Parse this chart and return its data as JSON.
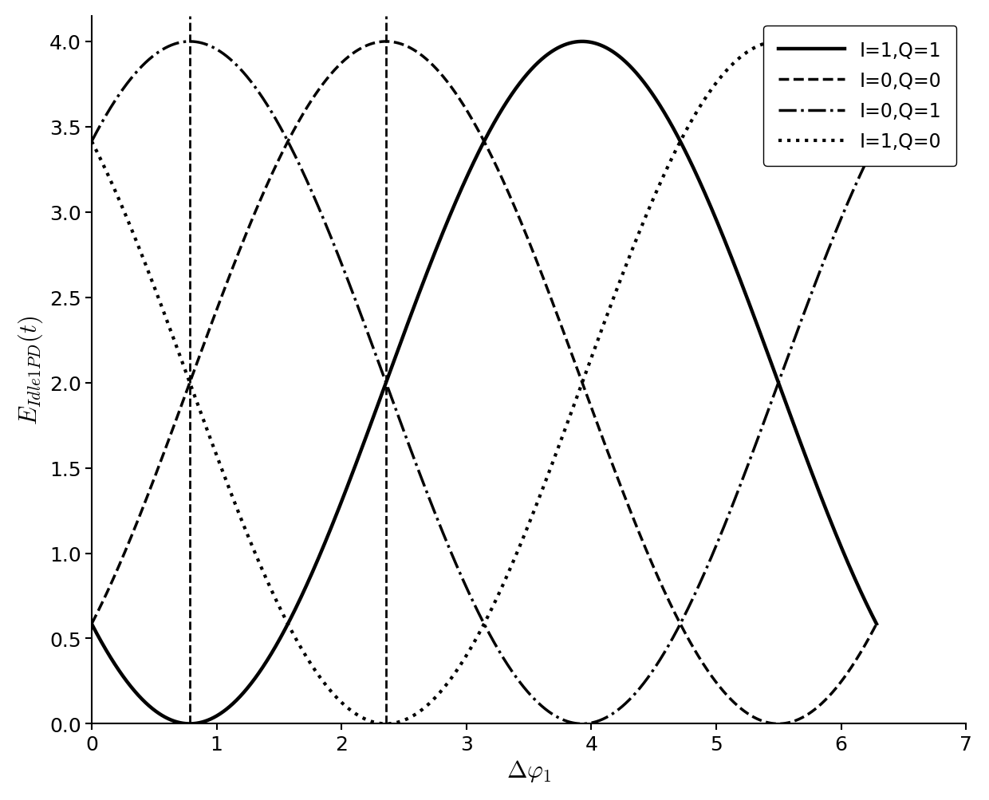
{
  "xlabel": "$\\Delta\\varphi_1$",
  "ylabel": "$E_{Idle1PD}(t)$",
  "xlim": [
    0,
    7
  ],
  "ylim": [
    0,
    4.15
  ],
  "xticks": [
    0,
    1,
    2,
    3,
    4,
    5,
    6,
    7
  ],
  "yticks": [
    0,
    0.5,
    1.0,
    1.5,
    2.0,
    2.5,
    3.0,
    3.5,
    4.0
  ],
  "vlines": [
    0.7853981633974483,
    2.356194490192345
  ],
  "curves": [
    {
      "label": "I=1,Q=1",
      "linestyle": "solid",
      "linewidth": 3.2,
      "phase": 0.7853981633974483
    },
    {
      "label": "I=0,Q=0",
      "linestyle": "dashed",
      "linewidth": 2.5,
      "phase": -0.7853981633974483
    },
    {
      "label": "I=0,Q=1",
      "linestyle": "dashdot",
      "linewidth": 2.5,
      "phase": 3.926990816987242
    },
    {
      "label": "I=1,Q=0",
      "linestyle": "dotted",
      "linewidth": 3.0,
      "phase": 2.356194490192345
    }
  ],
  "x_start": 0.0,
  "x_end": 6.283185307179586,
  "n_points": 2000,
  "figsize": [
    12.4,
    10.04
  ],
  "dpi": 100,
  "legend_fontsize": 17,
  "axis_label_fontsize": 22,
  "tick_fontsize": 18,
  "spine_linewidth": 1.5,
  "vline_linewidth": 2.0
}
